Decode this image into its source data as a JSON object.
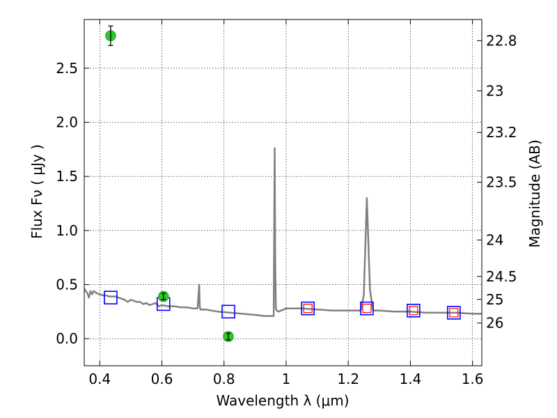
{
  "chart_data": {
    "type": "scatter",
    "xlabel": "Wavelength  λ (μm)",
    "ylabel": "Flux  Fν  ( μJy )",
    "y2label": "Magnitude (AB)",
    "xlim": [
      0.35,
      1.63
    ],
    "ylim": [
      -0.25,
      2.95
    ],
    "grid": true,
    "x_ticks": [
      {
        "v": 0.4,
        "label": "0.4"
      },
      {
        "v": 0.6,
        "label": "0.6"
      },
      {
        "v": 0.8,
        "label": "0.8"
      },
      {
        "v": 1.0,
        "label": "1"
      },
      {
        "v": 1.2,
        "label": "1.2"
      },
      {
        "v": 1.4,
        "label": "1.4"
      },
      {
        "v": 1.6,
        "label": "1.6"
      }
    ],
    "y_ticks": [
      {
        "v": 0.0,
        "label": "0.0"
      },
      {
        "v": 0.5,
        "label": "0.5"
      },
      {
        "v": 1.0,
        "label": "1.0"
      },
      {
        "v": 1.5,
        "label": "1.5"
      },
      {
        "v": 2.0,
        "label": "2.0"
      },
      {
        "v": 2.5,
        "label": "2.5"
      }
    ],
    "y2_ticks": [
      {
        "mag": 22.8,
        "label": "22.8"
      },
      {
        "mag": 23.0,
        "label": "23"
      },
      {
        "mag": 23.2,
        "label": "23.2"
      },
      {
        "mag": 23.5,
        "label": "23.5"
      },
      {
        "mag": 24.0,
        "label": "24"
      },
      {
        "mag": 24.5,
        "label": "24.5"
      },
      {
        "mag": 25.0,
        "label": "25"
      },
      {
        "mag": 26.0,
        "label": "26"
      }
    ],
    "series": [
      {
        "name": "model_sed",
        "style": "line",
        "color": "#808080",
        "x": [
          0.35,
          0.36,
          0.365,
          0.37,
          0.375,
          0.38,
          0.39,
          0.4,
          0.41,
          0.42,
          0.43,
          0.44,
          0.45,
          0.46,
          0.47,
          0.48,
          0.49,
          0.5,
          0.51,
          0.52,
          0.53,
          0.54,
          0.55,
          0.56,
          0.57,
          0.58,
          0.59,
          0.6,
          0.62,
          0.64,
          0.66,
          0.68,
          0.7,
          0.715,
          0.72,
          0.722,
          0.724,
          0.728,
          0.74,
          0.78,
          0.82,
          0.86,
          0.9,
          0.93,
          0.96,
          0.963,
          0.965,
          0.967,
          0.97,
          0.975,
          1.0,
          1.05,
          1.1,
          1.15,
          1.2,
          1.24,
          1.25,
          1.26,
          1.27,
          1.28,
          1.3,
          1.35,
          1.4,
          1.45,
          1.5,
          1.55,
          1.6,
          1.63
        ],
        "y": [
          0.46,
          0.42,
          0.38,
          0.44,
          0.41,
          0.44,
          0.42,
          0.41,
          0.4,
          0.4,
          0.39,
          0.39,
          0.39,
          0.38,
          0.37,
          0.36,
          0.34,
          0.36,
          0.35,
          0.34,
          0.34,
          0.32,
          0.33,
          0.31,
          0.32,
          0.33,
          0.3,
          0.31,
          0.3,
          0.3,
          0.29,
          0.29,
          0.28,
          0.28,
          0.5,
          0.3,
          0.27,
          0.27,
          0.27,
          0.25,
          0.24,
          0.23,
          0.22,
          0.21,
          0.21,
          1.76,
          0.7,
          0.28,
          0.26,
          0.25,
          0.28,
          0.28,
          0.27,
          0.26,
          0.26,
          0.26,
          0.4,
          1.3,
          0.45,
          0.26,
          0.26,
          0.25,
          0.25,
          0.24,
          0.24,
          0.24,
          0.23,
          0.23
        ]
      },
      {
        "name": "observed",
        "style": "points",
        "color": "#2ec52e",
        "points": [
          {
            "x": 0.435,
            "y": 2.8,
            "err": 0.09
          },
          {
            "x": 0.605,
            "y": 0.39,
            "err": 0.03
          },
          {
            "x": 0.814,
            "y": 0.02,
            "err": 0.03
          }
        ]
      },
      {
        "name": "model_bands",
        "style": "open-square",
        "color": "#0000ff",
        "x": [
          0.435,
          0.605,
          0.814,
          1.07,
          1.26,
          1.41,
          1.54
        ],
        "y": [
          0.38,
          0.32,
          0.25,
          0.28,
          0.28,
          0.26,
          0.24
        ]
      },
      {
        "name": "model_bands_red",
        "style": "small-open-square",
        "color": "#ff0000",
        "x": [
          1.07,
          1.26,
          1.41,
          1.54
        ],
        "y": [
          0.28,
          0.28,
          0.26,
          0.24
        ]
      }
    ]
  }
}
